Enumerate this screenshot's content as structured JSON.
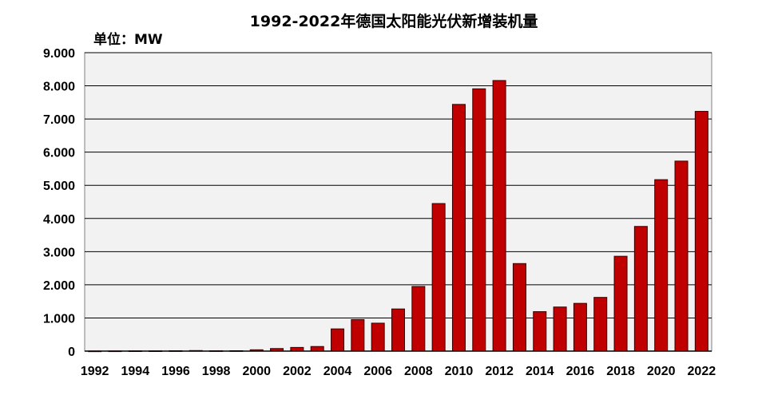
{
  "chart_data": {
    "type": "bar",
    "title": "1992-2022年德国太阳能光伏新增装机量",
    "unit_label": "单位：MW",
    "xlabel": "",
    "ylabel": "",
    "ylim": [
      0,
      9000
    ],
    "y_ticks": [
      0,
      1000,
      2000,
      3000,
      4000,
      5000,
      6000,
      7000,
      8000,
      9000
    ],
    "y_tick_labels": [
      "0",
      "1.000",
      "2.000",
      "3.000",
      "4.000",
      "5.000",
      "6.000",
      "7.000",
      "8.000",
      "9.000"
    ],
    "x_tick_labels": [
      "1992",
      "1994",
      "1996",
      "1998",
      "2000",
      "2002",
      "2004",
      "2006",
      "2008",
      "2010",
      "2012",
      "2014",
      "2016",
      "2018",
      "2020",
      "2022"
    ],
    "grid": "horizontal",
    "legend": "none",
    "bar_color": "#c00000",
    "plot_background": "#f2f2f2",
    "categories": [
      "1992",
      "1993",
      "1994",
      "1995",
      "1996",
      "1997",
      "1998",
      "1999",
      "2000",
      "2001",
      "2002",
      "2003",
      "2004",
      "2005",
      "2006",
      "2007",
      "2008",
      "2009",
      "2010",
      "2011",
      "2012",
      "2013",
      "2014",
      "2015",
      "2016",
      "2017",
      "2018",
      "2019",
      "2020",
      "2021",
      "2022"
    ],
    "values": [
      3,
      5,
      7,
      7,
      11,
      17,
      10,
      12,
      40,
      78,
      111,
      139,
      670,
      951,
      843,
      1271,
      1950,
      4450,
      7440,
      7910,
      8160,
      2640,
      1190,
      1330,
      1440,
      1620,
      2860,
      3760,
      5170,
      5730,
      7230
    ]
  }
}
